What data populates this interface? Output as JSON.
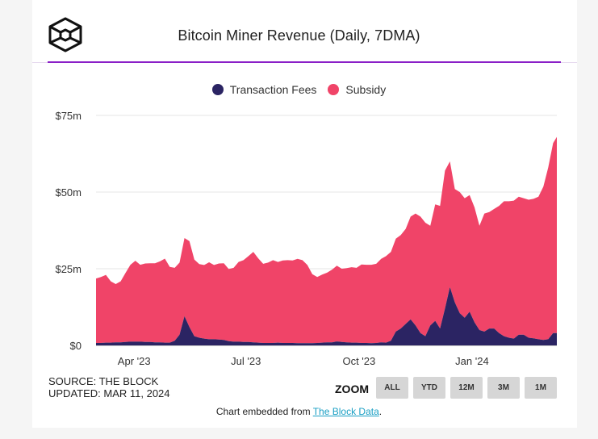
{
  "header": {
    "logo_icon": "the-block-cube-logo-icon",
    "title": "Bitcoin Miner Revenue (Daily, 7DMA)"
  },
  "legend": [
    {
      "label": "Transaction Fees",
      "color": "#2b2463"
    },
    {
      "label": "Subsidy",
      "color": "#f04468"
    }
  ],
  "footer": {
    "source": "SOURCE: THE BLOCK",
    "updated": "UPDATED: MAR 11, 2024",
    "zoom_label": "ZOOM",
    "zoom_buttons": [
      "ALL",
      "YTD",
      "12M",
      "3M",
      "1M"
    ],
    "embed_prefix": "Chart embedded from ",
    "embed_link": "The Block Data",
    "embed_suffix": "."
  },
  "chart_data": {
    "type": "area",
    "stacked": true,
    "title": "Bitcoin Miner Revenue (Daily, 7DMA)",
    "xlabel": "",
    "ylabel": "",
    "x_range": [
      "2023-03-01",
      "2024-03-10"
    ],
    "ylim": [
      0,
      75
    ],
    "y_unit": "USD millions",
    "y_ticks": [
      0,
      25,
      50,
      75
    ],
    "y_tick_labels": [
      "$0",
      "$25m",
      "$50m",
      "$75m"
    ],
    "x_ticks": [
      "2023-04-01",
      "2023-07-01",
      "2023-10-01",
      "2024-01-01"
    ],
    "x_tick_labels": [
      "Apr '23",
      "Jul '23",
      "Oct '23",
      "Jan '24"
    ],
    "grid": true,
    "legend_position": "top-center",
    "x": [
      "2023-03-01",
      "2023-03-05",
      "2023-03-09",
      "2023-03-13",
      "2023-03-17",
      "2023-03-21",
      "2023-03-25",
      "2023-03-29",
      "2023-04-02",
      "2023-04-06",
      "2023-04-10",
      "2023-04-14",
      "2023-04-18",
      "2023-04-22",
      "2023-04-26",
      "2023-04-30",
      "2023-05-04",
      "2023-05-08",
      "2023-05-12",
      "2023-05-16",
      "2023-05-20",
      "2023-05-24",
      "2023-05-28",
      "2023-06-01",
      "2023-06-05",
      "2023-06-09",
      "2023-06-13",
      "2023-06-17",
      "2023-06-21",
      "2023-06-25",
      "2023-06-29",
      "2023-07-03",
      "2023-07-07",
      "2023-07-11",
      "2023-07-15",
      "2023-07-19",
      "2023-07-23",
      "2023-07-27",
      "2023-07-31",
      "2023-08-04",
      "2023-08-08",
      "2023-08-12",
      "2023-08-16",
      "2023-08-20",
      "2023-08-24",
      "2023-08-28",
      "2023-09-01",
      "2023-09-05",
      "2023-09-09",
      "2023-09-13",
      "2023-09-17",
      "2023-09-21",
      "2023-09-25",
      "2023-09-29",
      "2023-10-03",
      "2023-10-07",
      "2023-10-11",
      "2023-10-15",
      "2023-10-19",
      "2023-10-23",
      "2023-10-27",
      "2023-10-31",
      "2023-11-04",
      "2023-11-08",
      "2023-11-12",
      "2023-11-16",
      "2023-11-20",
      "2023-11-24",
      "2023-11-28",
      "2023-12-02",
      "2023-12-06",
      "2023-12-10",
      "2023-12-14",
      "2023-12-18",
      "2023-12-22",
      "2023-12-26",
      "2023-12-30",
      "2024-01-03",
      "2024-01-07",
      "2024-01-11",
      "2024-01-15",
      "2024-01-19",
      "2024-01-23",
      "2024-01-27",
      "2024-01-31",
      "2024-02-04",
      "2024-02-08",
      "2024-02-12",
      "2024-02-16",
      "2024-02-20",
      "2024-02-24",
      "2024-02-28",
      "2024-03-03",
      "2024-03-07",
      "2024-03-10"
    ],
    "series": [
      {
        "name": "Transaction Fees",
        "color": "#2b2463",
        "values": [
          0.8,
          0.8,
          0.9,
          0.9,
          1.0,
          1.0,
          1.1,
          1.2,
          1.2,
          1.2,
          1.1,
          1.1,
          1.0,
          1.0,
          0.9,
          0.9,
          1.5,
          3.5,
          9.5,
          6.0,
          3.0,
          2.5,
          2.2,
          2.0,
          2.0,
          1.9,
          1.8,
          1.4,
          1.2,
          1.2,
          1.1,
          1.1,
          1.0,
          0.9,
          0.8,
          0.8,
          0.8,
          0.9,
          0.8,
          0.8,
          0.8,
          0.7,
          0.7,
          0.7,
          0.7,
          0.8,
          0.9,
          1.0,
          1.0,
          1.3,
          1.1,
          1.0,
          0.9,
          0.9,
          0.8,
          0.8,
          0.7,
          0.8,
          1.0,
          0.9,
          1.5,
          4.5,
          5.5,
          7.0,
          8.5,
          6.5,
          4.0,
          3.0,
          6.5,
          8.0,
          5.5,
          12.0,
          19.0,
          14.0,
          10.5,
          9.0,
          11.0,
          7.5,
          5.0,
          4.5,
          5.5,
          5.5,
          4.0,
          3.0,
          2.5,
          2.2,
          3.5,
          3.5,
          2.5,
          2.3,
          2.0,
          1.8,
          2.0,
          4.0,
          4.0
        ]
      },
      {
        "name": "Subsidy",
        "color": "#f04468",
        "values": [
          21.0,
          21.5,
          22.1,
          20.0,
          19.0,
          19.9,
          22.5,
          25.1,
          26.4,
          25.1,
          25.6,
          25.7,
          25.8,
          26.4,
          27.4,
          24.7,
          23.8,
          23.5,
          25.5,
          28.0,
          25.0,
          24.0,
          24.0,
          25.1,
          24.2,
          24.8,
          25.0,
          23.5,
          24.1,
          26.0,
          26.7,
          28.0,
          29.5,
          27.5,
          25.8,
          26.2,
          27.0,
          26.3,
          26.9,
          27.0,
          26.9,
          27.5,
          27.1,
          25.5,
          22.5,
          21.5,
          22.2,
          22.7,
          23.7,
          24.7,
          23.9,
          24.2,
          24.6,
          24.4,
          25.6,
          25.5,
          25.6,
          25.8,
          27.2,
          28.2,
          29.0,
          30.3,
          30.5,
          31.0,
          33.5,
          36.5,
          38.0,
          37.0,
          32.5,
          38.0,
          40.0,
          45.0,
          41.0,
          37.0,
          39.5,
          39.0,
          38.0,
          37.5,
          34.0,
          38.5,
          38.0,
          39.0,
          41.5,
          44.0,
          44.5,
          45.0,
          45.0,
          44.5,
          45.0,
          45.5,
          46.5,
          50.0,
          56.0,
          62.0,
          64.0
        ]
      }
    ],
    "annotations": {
      "total_peak_dec_2023": 60.5,
      "total_latest": 68.0,
      "fees_peak_dec_2023": 19.0,
      "fees_peak_may_2023": 9.5
    }
  }
}
